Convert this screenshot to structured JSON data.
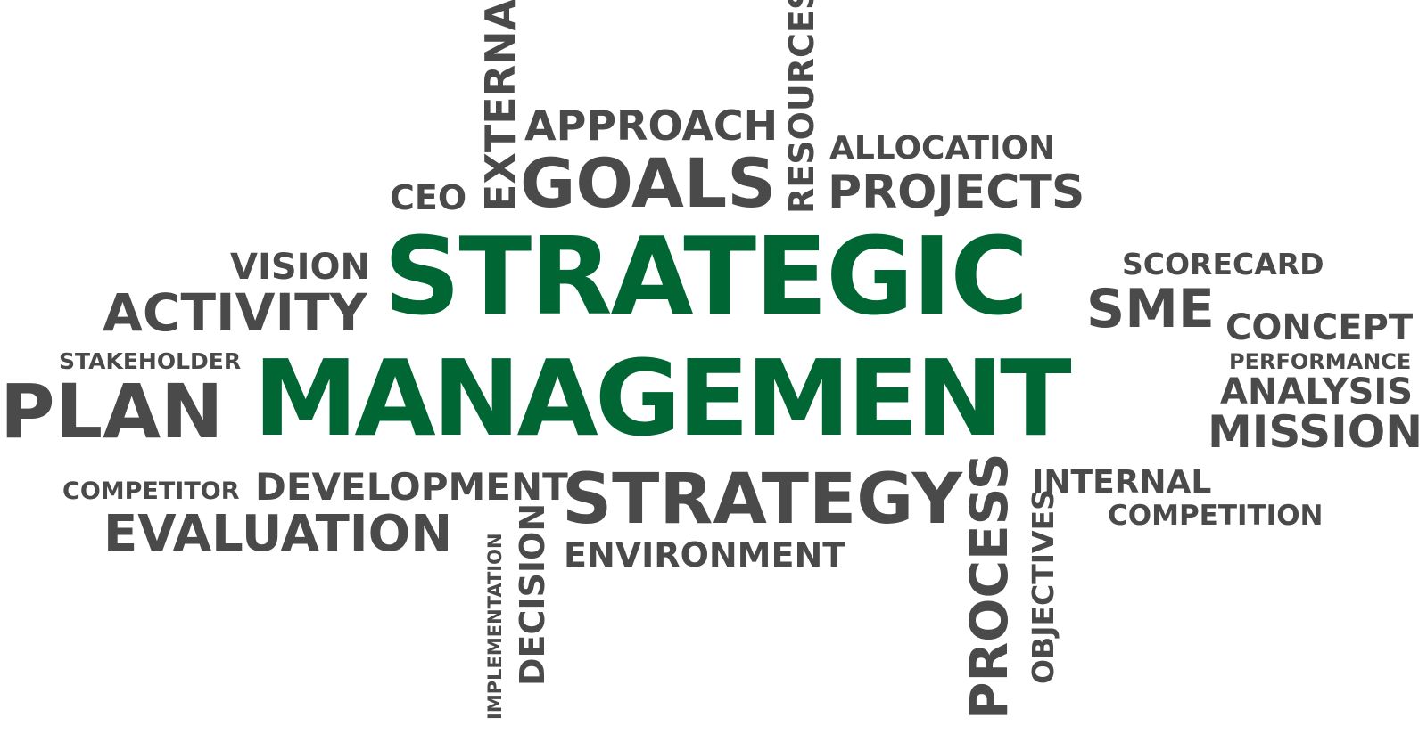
{
  "words": {
    "strategic": "STRATEGIC",
    "management": "MANAGEMENT",
    "approach": "APPROACH",
    "goals": "GOALS",
    "ceo": "CEO",
    "external": "EXTERNAL",
    "resources": "RESOURCES",
    "allocation": "ALLOCATION",
    "projects": "PROJECTS",
    "vision": "VISION",
    "activity": "ACTIVITY",
    "stakeholder": "STAKEHOLDER",
    "plan": "PLAN",
    "scorecard": "SCORECARD",
    "sme": "SME",
    "concept": "CONCEPT",
    "performance": "PERFORMANCE",
    "analysis": "ANALYSIS",
    "mission": "MISSION",
    "competitor": "COMPETITOR",
    "development": "DEVELOPMENT",
    "evaluation": "EVALUATION",
    "strategy": "STRATEGY",
    "environment": "ENVIRONMENT",
    "implementation": "IMPLEMENTATION",
    "decision": "DECISION",
    "process": "PROCESS",
    "objectives": "OBJECTIVES",
    "internal": "INTERNAL",
    "competition": "COMPETITION"
  },
  "colors": {
    "accent_green": "#006633",
    "text_gray": "#4a4a4a",
    "background": "#ffffff"
  }
}
